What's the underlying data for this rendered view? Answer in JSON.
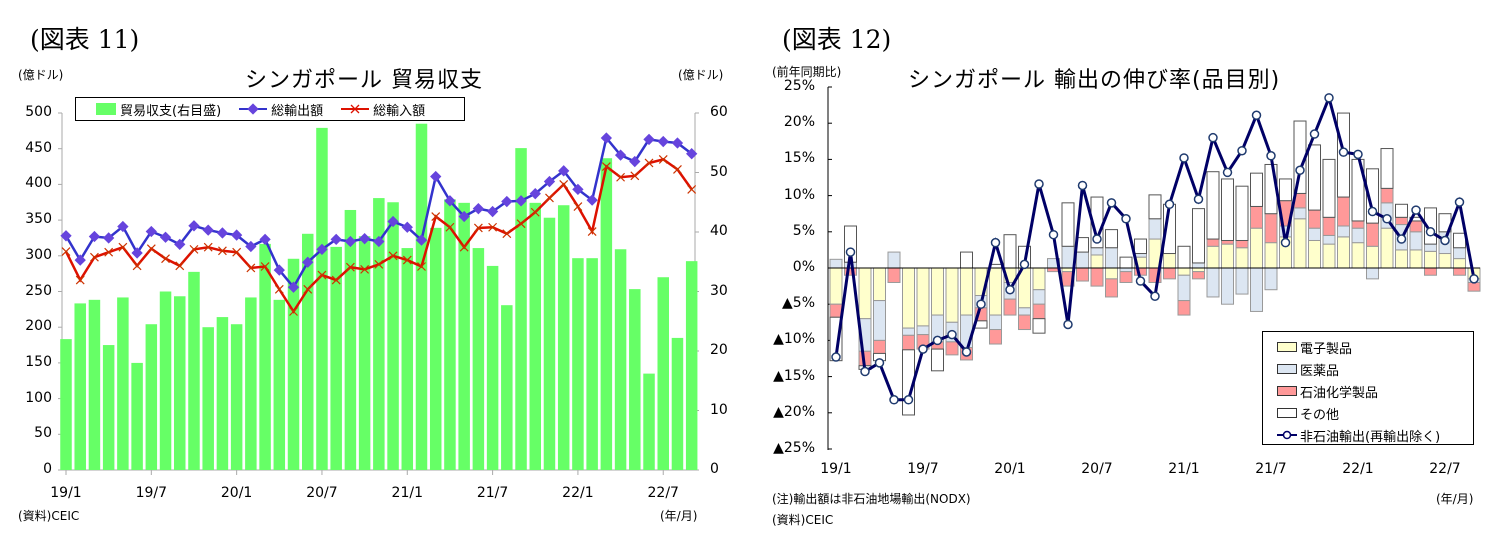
{
  "left": {
    "fig_label": "(図表 11)",
    "title": "シンガポール  貿易収支",
    "unit_left": "(億ドル)",
    "unit_right": "(億ドル)",
    "source": "(資料)CEIC",
    "xunit": "(年/月)",
    "legend": [
      "貿易収支(右目盛)",
      "総輸出額",
      "総輸入額"
    ],
    "yticks_left": [
      "500",
      "450",
      "400",
      "350",
      "300",
      "250",
      "200",
      "150",
      "100",
      "50",
      "0"
    ],
    "yticks_right": [
      "60",
      "50",
      "40",
      "30",
      "20",
      "10",
      "0"
    ],
    "xticks": [
      "19/1",
      "19/7",
      "20/1",
      "20/7",
      "21/1",
      "21/7",
      "22/1",
      "22/7"
    ]
  },
  "right": {
    "fig_label": "(図表 12)",
    "title": "シンガポール  輸出の伸び率(品目別)",
    "unit": "(前年同期比)",
    "note": "(注)輸出額は非石油地場輸出(NODX)",
    "source": "(資料)CEIC",
    "xunit": "(年/月)",
    "legend": [
      "電子製品",
      "医薬品",
      "石油化学製品",
      "その他",
      "非石油輸出(再輸出除く)"
    ],
    "yticks": [
      "25%",
      "20%",
      "15%",
      "10%",
      "5%",
      "0%",
      "▲5%",
      "▲10%",
      "▲15%",
      "▲20%",
      "▲25%"
    ],
    "xticks": [
      "19/1",
      "19/7",
      "20/1",
      "20/7",
      "21/1",
      "21/7",
      "22/1",
      "22/7"
    ]
  },
  "colors": {
    "balance": "#66ff66",
    "exports": "#3333cc",
    "exports_marker": "#6644dd",
    "imports": "#dd1100",
    "electronics": "#ffffcc",
    "pharma": "#dce6f2",
    "petrochem": "#ff9999",
    "other": "#ffffff",
    "nodx": "#000066"
  },
  "chart_data": [
    {
      "type": "bar+line",
      "title": "シンガポール  貿易収支",
      "xlabel": "(年/月)",
      "ylabel": "(億ドル)",
      "ylim": [
        0,
        500
      ],
      "ylim_right": [
        0,
        60
      ],
      "grid": false,
      "legend_position": "top",
      "categories": [
        "19/1",
        "19/2",
        "19/3",
        "19/4",
        "19/5",
        "19/6",
        "19/7",
        "19/8",
        "19/9",
        "19/10",
        "19/11",
        "19/12",
        "20/1",
        "20/2",
        "20/3",
        "20/4",
        "20/5",
        "20/6",
        "20/7",
        "20/8",
        "20/9",
        "20/10",
        "20/11",
        "20/12",
        "21/1",
        "21/2",
        "21/3",
        "21/4",
        "21/5",
        "21/6",
        "21/7",
        "21/8",
        "21/9",
        "21/10",
        "21/11",
        "21/12",
        "22/1",
        "22/2",
        "22/3",
        "22/4",
        "22/5",
        "22/6",
        "22/7",
        "22/8",
        "22/9"
      ],
      "series": [
        {
          "name": "貿易収支(右目盛)",
          "axis": "right",
          "kind": "bar",
          "values": [
            22,
            28,
            28.6,
            21,
            29,
            18,
            24.5,
            30,
            29.2,
            33.3,
            24,
            25.7,
            24.5,
            29,
            38,
            28.6,
            35.5,
            39.7,
            57.5,
            37.5,
            43.7,
            39.3,
            45.7,
            45,
            37.3,
            58.2,
            40.7,
            45.5,
            44.9,
            37.3,
            34.3,
            27.7,
            54.1,
            44.9,
            42.4,
            44.5,
            35.6,
            35.6,
            52.4,
            37.1,
            30.4,
            16.2,
            32.4,
            22.2,
            35.1
          ]
        },
        {
          "name": "総輸出額",
          "axis": "left",
          "kind": "line",
          "values": [
            328,
            294,
            327,
            325,
            341,
            304,
            334,
            326,
            316,
            342,
            336,
            332,
            329,
            313,
            323,
            280,
            256,
            291,
            309,
            323,
            320,
            324,
            320,
            348,
            340,
            322,
            411,
            377,
            355,
            366,
            362,
            376,
            377,
            387,
            404,
            419,
            393,
            378,
            465,
            441,
            432,
            463,
            460,
            458,
            443
          ]
        },
        {
          "name": "総輸入額",
          "axis": "left",
          "kind": "line",
          "values": [
            306,
            266,
            298,
            305,
            312,
            286,
            310,
            296,
            286,
            309,
            312,
            307,
            305,
            283,
            285,
            253,
            222,
            253,
            273,
            266,
            284,
            281,
            288,
            300,
            294,
            285,
            355,
            340,
            312,
            339,
            340,
            331,
            345,
            361,
            381,
            400,
            369,
            334,
            425,
            410,
            412,
            430,
            435,
            421,
            393
          ]
        }
      ]
    },
    {
      "type": "stacked-bar+line",
      "title": "シンガポール  輸出の伸び率(品目別)",
      "xlabel": "(年/月)",
      "ylabel": "(前年同期比)",
      "ylim": [
        -25,
        25
      ],
      "grid": false,
      "legend_position": "bottom-right",
      "categories": [
        "19/1",
        "19/2",
        "19/3",
        "19/4",
        "19/5",
        "19/6",
        "19/7",
        "19/8",
        "19/9",
        "19/10",
        "19/11",
        "19/12",
        "20/1",
        "20/2",
        "20/3",
        "20/4",
        "20/5",
        "20/6",
        "20/7",
        "20/8",
        "20/9",
        "20/10",
        "20/11",
        "20/12",
        "21/1",
        "21/2",
        "21/3",
        "21/4",
        "21/5",
        "21/6",
        "21/7",
        "21/8",
        "21/9",
        "21/10",
        "21/11",
        "21/12",
        "22/1",
        "22/2",
        "22/3",
        "22/4",
        "22/5",
        "22/6",
        "22/7",
        "22/8",
        "22/9"
      ],
      "series": [
        {
          "name": "電子製品",
          "kind": "stack",
          "values": [
            -5,
            0,
            -7,
            -4.5,
            0,
            -8.3,
            -8,
            -6.5,
            -7.5,
            -6.5,
            -3.8,
            -6.5,
            -2,
            -5.5,
            -3,
            0,
            -0.5,
            0,
            1.8,
            -1.5,
            0,
            1.5,
            4,
            2,
            -1,
            -0.5,
            3,
            3.3,
            2.8,
            5.5,
            3.5,
            4.3,
            6.8,
            3.8,
            3.3,
            4.3,
            3.5,
            3,
            5.5,
            2.5,
            2.5,
            2.3,
            2,
            1.3,
            -1.5
          ]
        },
        {
          "name": "医薬品",
          "kind": "stack",
          "values": [
            1.2,
            0.8,
            -4.5,
            -5.5,
            2.2,
            -1,
            -1.2,
            -3.7,
            -2.7,
            -4.5,
            -1.7,
            -2,
            -2.3,
            -1,
            -2,
            1.3,
            3,
            2.2,
            1,
            2.8,
            -0.5,
            0.5,
            2.8,
            0,
            -3.5,
            0.7,
            -4,
            -5,
            -3.6,
            -6,
            -3,
            1.5,
            1.5,
            1.7,
            1.2,
            1.5,
            2,
            -1.5,
            3.5,
            3.5,
            2.5,
            1,
            3,
            1.5,
            -0.5
          ]
        },
        {
          "name": "石油化学製品",
          "kind": "stack",
          "values": [
            -1.8,
            -1,
            -2,
            -1.8,
            -2,
            -2,
            -2,
            -1,
            -1.8,
            -1.7,
            -1.8,
            -2,
            -2.2,
            -2,
            -2,
            -0.5,
            -2,
            -1.8,
            -2.5,
            -2.5,
            -1.5,
            -1,
            -2,
            -1.5,
            -2,
            -1,
            1,
            0.5,
            1,
            3,
            4,
            3.5,
            2,
            2.5,
            2.5,
            4,
            1,
            3.2,
            2,
            1,
            1.5,
            -1,
            0,
            -1,
            -1.2
          ]
        },
        {
          "name": "その他",
          "kind": "stack",
          "values": [
            -6,
            5,
            -0.5,
            -1,
            0,
            -9,
            0,
            -3,
            0,
            2.2,
            -1,
            0.5,
            4.6,
            3,
            -2,
            0,
            6,
            2,
            7,
            2.5,
            1.5,
            2,
            3.3,
            6.8,
            3,
            7.5,
            9.3,
            8.5,
            7.5,
            4.6,
            6.8,
            3,
            10,
            9,
            8,
            11.6,
            8.5,
            7.5,
            5.5,
            1.8,
            0.5,
            5,
            2.5,
            2,
            0
          ]
        },
        {
          "name": "非石油輸出(再輸出除く)",
          "kind": "line",
          "values": [
            -12.3,
            2.2,
            -14.3,
            -13.1,
            -18.2,
            -18.2,
            -11.2,
            -10,
            -9.2,
            -11.6,
            -5,
            3.5,
            -3,
            0.5,
            11.6,
            4.6,
            -7.8,
            11.4,
            4,
            9,
            6.8,
            -1.8,
            -3.9,
            8.8,
            15.2,
            9.5,
            18,
            13.2,
            16.2,
            21.1,
            15.5,
            3.5,
            13.5,
            18.5,
            23.5,
            16,
            15.7,
            7.8,
            6.8,
            4,
            8,
            5,
            3.8,
            9.1,
            -1.5
          ]
        }
      ]
    }
  ]
}
